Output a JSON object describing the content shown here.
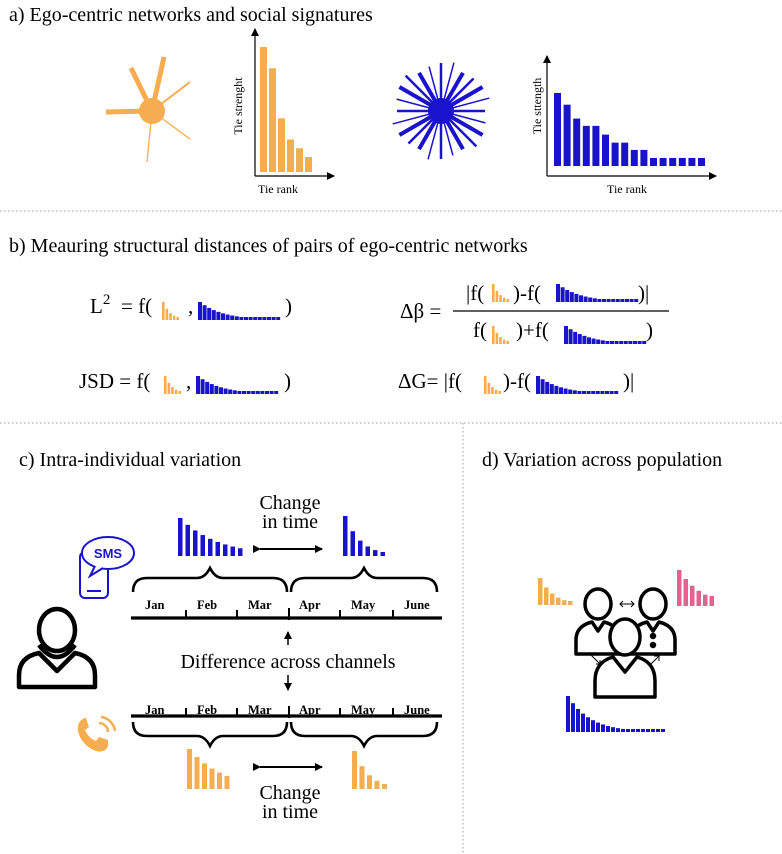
{
  "colors": {
    "orange": "#F6AD4F",
    "blue": "#1A13CC",
    "pink": "#E2648E",
    "black": "#000000",
    "divider": "#9a9a9a"
  },
  "section_a": {
    "title": "a) Ego-centric networks and social signatures",
    "left_chart": {
      "ylabel": "Tie strenght",
      "xlabel": "Tie rank"
    },
    "right_chart": {
      "ylabel": "Tie sttength",
      "xlabel": "Tie rank"
    }
  },
  "section_b": {
    "title": "b) Meauring structural distances of pairs of ego-centric networks",
    "l2_lhs": "L",
    "l2_sup": "2",
    "l2_rhs": "= f(",
    "l2_sep": ",",
    "l2_close": ")",
    "jsd_lhs": "JSD = f(",
    "jsd_sep": ",",
    "jsd_close": ")",
    "db_lhs": "Δβ =",
    "db_num_a": "|f(",
    "db_num_b": ")-f(",
    "db_num_c": ")|",
    "db_den_a": "f(",
    "db_den_b": ")+f(",
    "db_den_c": ")",
    "dg_lhs": "ΔG= |f(",
    "dg_mid": ")-f(",
    "dg_close": ")|"
  },
  "section_c": {
    "title": "c) Intra-individual variation",
    "change_top": [
      "Change",
      "in time"
    ],
    "change_bottom": [
      "Change",
      "in time"
    ],
    "difference": "Difference across channels",
    "sms": "SMS",
    "months": [
      "Jan",
      "Feb",
      "Mar",
      "Apr",
      "May",
      "June"
    ]
  },
  "section_d": {
    "title": "d) Variation across population"
  },
  "chart_data": [
    {
      "type": "bar",
      "ylabel": "Tie strenght",
      "xlabel": "Tie rank",
      "series": [
        {
          "values": [
            10,
            8.3,
            4.3,
            2.6,
            1.9,
            1.2
          ]
        }
      ]
    },
    {
      "type": "bar",
      "ylabel": "Tie sttength",
      "xlabel": "Tie rank",
      "series": [
        {
          "values": [
            10,
            8.4,
            6.5,
            5.5,
            5.5,
            4.3,
            3.2,
            3.2,
            2.2,
            2.2,
            1.1,
            1.1,
            1.1,
            1.1,
            1.1,
            1.1
          ]
        }
      ]
    }
  ]
}
